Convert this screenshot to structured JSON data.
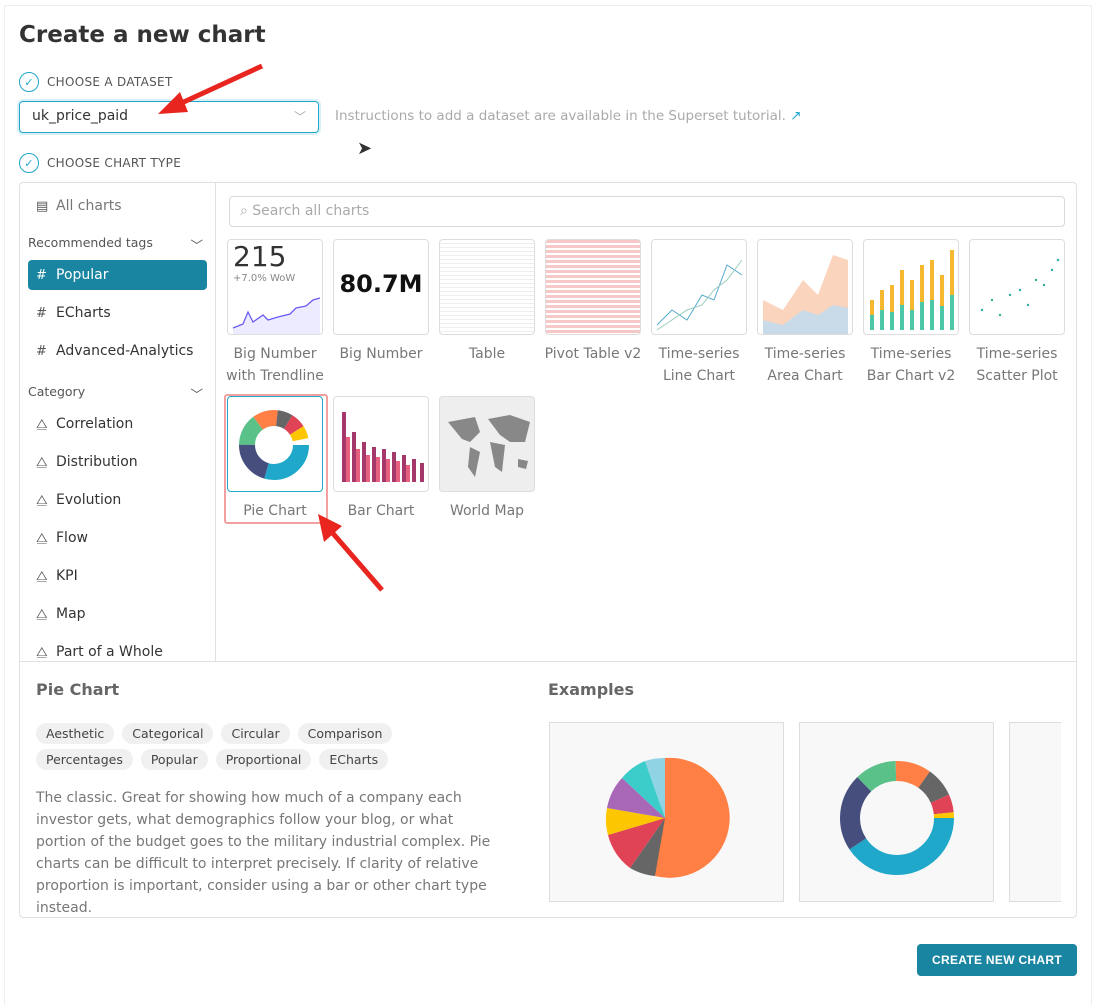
{
  "title": "Create a new chart",
  "step1": "CHOOSE A DATASET",
  "dataset": {
    "value": "uk_price_paid"
  },
  "hint": "Instructions to add a dataset are available in the Superset tutorial.",
  "step2": "CHOOSE CHART TYPE",
  "sidebar": {
    "all": "All charts",
    "recommended_header": "Recommended tags",
    "tags": [
      {
        "label": "Popular",
        "active": true
      },
      {
        "label": "ECharts"
      },
      {
        "label": "Advanced-Analytics"
      }
    ],
    "category_header": "Category",
    "categories": [
      "Correlation",
      "Distribution",
      "Evolution",
      "Flow",
      "KPI",
      "Map",
      "Part of a Whole"
    ]
  },
  "search": {
    "placeholder": "Search all charts"
  },
  "charts": [
    {
      "label": "Big Number with Trendline",
      "big": "215",
      "sub": "+7.0% WoW"
    },
    {
      "label": "Big Number",
      "big": "80.7M"
    },
    {
      "label": "Table"
    },
    {
      "label": "Pivot Table v2"
    },
    {
      "label": "Time-series Line Chart"
    },
    {
      "label": "Time-series Area Chart"
    },
    {
      "label": "Time-series Bar Chart v2"
    },
    {
      "label": "Time-series Scatter Plot"
    },
    {
      "label": "Pie Chart",
      "selected": true
    },
    {
      "label": "Bar Chart"
    },
    {
      "label": "World Map"
    }
  ],
  "details": {
    "name": "Pie Chart",
    "examples_title": "Examples",
    "tags": [
      "Aesthetic",
      "Categorical",
      "Circular",
      "Comparison",
      "Percentages",
      "Popular",
      "Proportional",
      "ECharts"
    ],
    "description": "The classic. Great for showing how much of a company each investor gets, what demographics follow your blog, or what portion of the budget goes to the military industrial complex. Pie charts can be difficult to interpret precisely. If clarity of relative proportion is important, consider using a bar or other chart type instead."
  },
  "create_button": "CREATE NEW CHART",
  "colors": {
    "accent": "#1a85a0",
    "annotation": "#e8251f"
  }
}
